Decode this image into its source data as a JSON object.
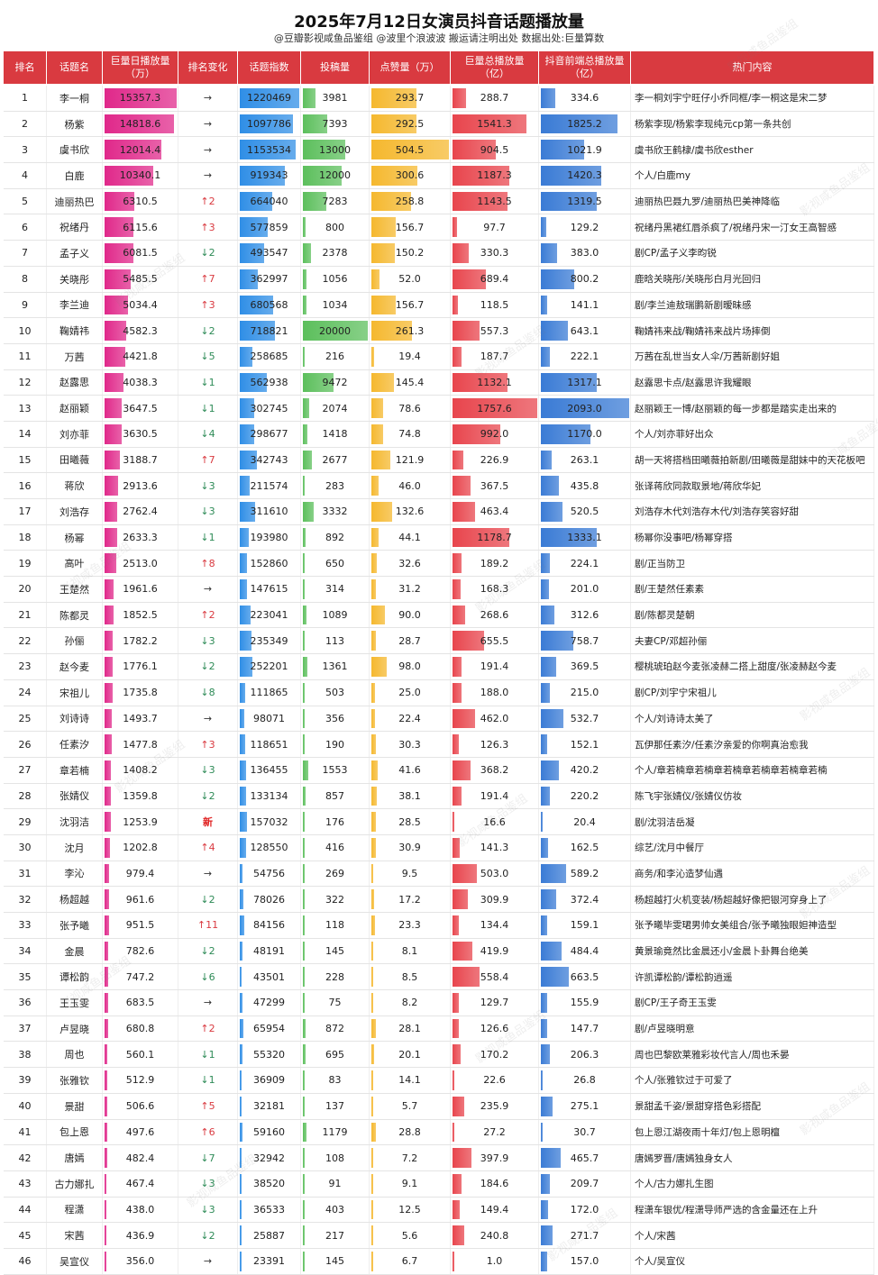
{
  "title": "2025年7月12日女演员抖音话题播放量",
  "subtitle": "@豆瓣影视咸鱼品鉴组 @波里个浪波波 搬运请注明出处 数据出处:巨量算数",
  "watermark": "影视咸鱼品鉴组",
  "colors": {
    "header": "#d93a40",
    "bar_daily": "#e0288a",
    "bar_index": "#2f8ee6",
    "bar_posts": "#5cbf5c",
    "bar_likes": "#f5b82e",
    "bar_total": "#e8454d",
    "bar_frontend": "#3a7bd5"
  },
  "headers": {
    "rank": "排名",
    "name": "话题名",
    "daily": "巨量日播放量\n（万）",
    "change": "排名变化",
    "index": "话题指数",
    "posts": "投稿量",
    "likes": "点赞量（万）",
    "total": "巨量总播放量\n（亿）",
    "frontend": "抖音前端总播放量\n（亿）",
    "hot": "热门内容"
  },
  "rows": [
    {
      "rank": "1",
      "name": "李一桐",
      "daily": "15357.3",
      "change": "→",
      "index": "1220469",
      "posts": "3981",
      "likes": "293.7",
      "total": "288.7",
      "frontend": "334.6",
      "hot": "李一桐刘宇宁旺仔小乔同框/李一桐这是宋二梦"
    },
    {
      "rank": "2",
      "name": "杨紫",
      "daily": "14818.6",
      "change": "→",
      "index": "1097786",
      "posts": "7393",
      "likes": "292.5",
      "total": "1541.3",
      "frontend": "1825.2",
      "hot": "杨紫李现/杨紫李现纯元cp第一条共创"
    },
    {
      "rank": "3",
      "name": "虞书欣",
      "daily": "12014.4",
      "change": "→",
      "index": "1153534",
      "posts": "13000",
      "likes": "504.5",
      "total": "904.5",
      "frontend": "1021.9",
      "hot": "虞书欣王鹤棣/虞书欣esther"
    },
    {
      "rank": "4",
      "name": "白鹿",
      "daily": "10340.1",
      "change": "→",
      "index": "919343",
      "posts": "12000",
      "likes": "300.6",
      "total": "1187.3",
      "frontend": "1420.3",
      "hot": "个人/白鹿my"
    },
    {
      "rank": "5",
      "name": "迪丽热巴",
      "daily": "6310.5",
      "change": "↑2",
      "index": "664040",
      "posts": "7283",
      "likes": "258.8",
      "total": "1143.5",
      "frontend": "1319.5",
      "hot": "迪丽热巴聂九罗/迪丽热巴美神降临"
    },
    {
      "rank": "6",
      "name": "祝绪丹",
      "daily": "6115.6",
      "change": "↑3",
      "index": "577859",
      "posts": "800",
      "likes": "156.7",
      "total": "97.7",
      "frontend": "129.2",
      "hot": "祝绪丹黑裙红唇杀疯了/祝绪丹宋一汀女王高智感"
    },
    {
      "rank": "7",
      "name": "孟子义",
      "daily": "6081.5",
      "change": "↓2",
      "index": "493547",
      "posts": "2378",
      "likes": "150.2",
      "total": "330.3",
      "frontend": "383.0",
      "hot": "剧CP/孟子义李昀锐"
    },
    {
      "rank": "8",
      "name": "关晓彤",
      "daily": "5485.5",
      "change": "↑7",
      "index": "362997",
      "posts": "1056",
      "likes": "52.0",
      "total": "689.4",
      "frontend": "800.2",
      "hot": "鹿晗关晓彤/关晓彤白月光回归"
    },
    {
      "rank": "9",
      "name": "李兰迪",
      "daily": "5034.4",
      "change": "↑3",
      "index": "680568",
      "posts": "1034",
      "likes": "156.7",
      "total": "118.5",
      "frontend": "141.1",
      "hot": "剧/李兰迪敖瑞鹏新剧暧昧感"
    },
    {
      "rank": "10",
      "name": "鞠婧祎",
      "daily": "4582.3",
      "change": "↓2",
      "index": "718821",
      "posts": "20000",
      "likes": "261.3",
      "total": "557.3",
      "frontend": "643.1",
      "hot": "鞠婧祎来战/鞠婧祎来战片场摔倒"
    },
    {
      "rank": "11",
      "name": "万茜",
      "daily": "4421.8",
      "change": "↓5",
      "index": "258685",
      "posts": "216",
      "likes": "19.4",
      "total": "187.7",
      "frontend": "222.1",
      "hot": "万茜在乱世当女人伞/万茜新剧好姐"
    },
    {
      "rank": "12",
      "name": "赵露思",
      "daily": "4038.3",
      "change": "↓1",
      "index": "562938",
      "posts": "9472",
      "likes": "145.4",
      "total": "1132.1",
      "frontend": "1317.1",
      "hot": "赵露思卡点/赵露思许我耀眼"
    },
    {
      "rank": "13",
      "name": "赵丽颖",
      "daily": "3647.5",
      "change": "↓1",
      "index": "302745",
      "posts": "2074",
      "likes": "78.6",
      "total": "1757.6",
      "frontend": "2093.0",
      "hot": "赵丽颖王一博/赵丽颖的每一步都是踏实走出来的"
    },
    {
      "rank": "14",
      "name": "刘亦菲",
      "daily": "3630.5",
      "change": "↓4",
      "index": "298677",
      "posts": "1418",
      "likes": "74.8",
      "total": "992.0",
      "frontend": "1170.0",
      "hot": "个人/刘亦菲好出众"
    },
    {
      "rank": "15",
      "name": "田曦薇",
      "daily": "3188.7",
      "change": "↑7",
      "index": "342743",
      "posts": "2677",
      "likes": "121.9",
      "total": "226.9",
      "frontend": "263.1",
      "hot": "胡一天将搭档田曦薇拍新剧/田曦薇是甜妹中的天花板吧"
    },
    {
      "rank": "16",
      "name": "蒋欣",
      "daily": "2913.6",
      "change": "↓3",
      "index": "211574",
      "posts": "283",
      "likes": "46.0",
      "total": "367.5",
      "frontend": "435.8",
      "hot": "张译蒋欣同款取景地/蒋欣华妃"
    },
    {
      "rank": "17",
      "name": "刘浩存",
      "daily": "2762.4",
      "change": "↓3",
      "index": "311610",
      "posts": "3332",
      "likes": "132.6",
      "total": "463.4",
      "frontend": "520.5",
      "hot": "刘浩存木代刘浩存木代/刘浩存笑容好甜"
    },
    {
      "rank": "18",
      "name": "杨幂",
      "daily": "2633.3",
      "change": "↓1",
      "index": "193980",
      "posts": "892",
      "likes": "44.1",
      "total": "1178.7",
      "frontend": "1333.1",
      "hot": "杨幂你没事吧/杨幂穿搭"
    },
    {
      "rank": "19",
      "name": "高叶",
      "daily": "2513.0",
      "change": "↑8",
      "index": "152860",
      "posts": "650",
      "likes": "32.6",
      "total": "189.2",
      "frontend": "224.1",
      "hot": "剧/正当防卫"
    },
    {
      "rank": "20",
      "name": "王楚然",
      "daily": "1961.6",
      "change": "→",
      "index": "147615",
      "posts": "314",
      "likes": "31.2",
      "total": "168.3",
      "frontend": "201.0",
      "hot": "剧/王楚然任素素"
    },
    {
      "rank": "21",
      "name": "陈都灵",
      "daily": "1852.5",
      "change": "↑2",
      "index": "223041",
      "posts": "1089",
      "likes": "90.0",
      "total": "268.6",
      "frontend": "312.6",
      "hot": "剧/陈都灵楚朝"
    },
    {
      "rank": "22",
      "name": "孙俪",
      "daily": "1782.2",
      "change": "↓3",
      "index": "235349",
      "posts": "113",
      "likes": "28.7",
      "total": "655.5",
      "frontend": "758.7",
      "hot": "夫妻CP/邓超孙俪"
    },
    {
      "rank": "23",
      "name": "赵今麦",
      "daily": "1776.1",
      "change": "↓2",
      "index": "252201",
      "posts": "1361",
      "likes": "98.0",
      "total": "191.4",
      "frontend": "369.5",
      "hot": "樱桃琥珀赵今麦张凌赫二搭上甜度/张凌赫赵今麦"
    },
    {
      "rank": "24",
      "name": "宋祖儿",
      "daily": "1735.8",
      "change": "↓8",
      "index": "111865",
      "posts": "503",
      "likes": "25.0",
      "total": "188.0",
      "frontend": "215.0",
      "hot": "剧CP/刘宇宁宋祖儿"
    },
    {
      "rank": "25",
      "name": "刘诗诗",
      "daily": "1493.7",
      "change": "→",
      "index": "98071",
      "posts": "356",
      "likes": "22.4",
      "total": "462.0",
      "frontend": "532.7",
      "hot": "个人/刘诗诗太美了"
    },
    {
      "rank": "26",
      "name": "任素汐",
      "daily": "1477.8",
      "change": "↑3",
      "index": "118651",
      "posts": "190",
      "likes": "30.3",
      "total": "126.3",
      "frontend": "152.1",
      "hot": "瓦伊那任素汐/任素汐亲爱的你啊真治愈我"
    },
    {
      "rank": "27",
      "name": "章若楠",
      "daily": "1408.2",
      "change": "↓3",
      "index": "136455",
      "posts": "1553",
      "likes": "41.6",
      "total": "368.2",
      "frontend": "420.2",
      "hot": "个人/章若楠章若楠章若楠章若楠章若楠章若楠"
    },
    {
      "rank": "28",
      "name": "张婧仪",
      "daily": "1359.8",
      "change": "↓2",
      "index": "133134",
      "posts": "857",
      "likes": "38.1",
      "total": "191.4",
      "frontend": "220.2",
      "hot": "陈飞宇张婧仪/张婧仪仿妆"
    },
    {
      "rank": "29",
      "name": "沈羽洁",
      "daily": "1253.9",
      "change": "新",
      "index": "157032",
      "posts": "176",
      "likes": "28.5",
      "total": "16.6",
      "frontend": "20.4",
      "hot": "剧/沈羽洁岳凝"
    },
    {
      "rank": "30",
      "name": "沈月",
      "daily": "1202.8",
      "change": "↑4",
      "index": "128550",
      "posts": "416",
      "likes": "30.9",
      "total": "141.3",
      "frontend": "162.5",
      "hot": "综艺/沈月中餐厅"
    },
    {
      "rank": "31",
      "name": "李沁",
      "daily": "979.4",
      "change": "→",
      "index": "54756",
      "posts": "269",
      "likes": "9.5",
      "total": "503.0",
      "frontend": "589.2",
      "hot": "商务/和李沁造梦仙遇"
    },
    {
      "rank": "32",
      "name": "杨超越",
      "daily": "961.6",
      "change": "↓2",
      "index": "78026",
      "posts": "322",
      "likes": "17.2",
      "total": "309.9",
      "frontend": "372.4",
      "hot": "杨超越打火机变装/杨超越好像把银河穿身上了"
    },
    {
      "rank": "33",
      "name": "张予曦",
      "daily": "951.5",
      "change": "↑11",
      "index": "84156",
      "posts": "118",
      "likes": "23.3",
      "total": "134.4",
      "frontend": "159.1",
      "hot": "张予曦毕雯珺男帅女美组合/张予曦独眼妲神造型"
    },
    {
      "rank": "34",
      "name": "金晨",
      "daily": "782.6",
      "change": "↓2",
      "index": "48191",
      "posts": "145",
      "likes": "8.1",
      "total": "419.9",
      "frontend": "484.4",
      "hot": "黄景瑜竟然比金晨还小/金晨卜卦舞台绝美"
    },
    {
      "rank": "35",
      "name": "谭松韵",
      "daily": "747.2",
      "change": "↓6",
      "index": "43501",
      "posts": "228",
      "likes": "8.5",
      "total": "558.4",
      "frontend": "663.5",
      "hot": "许凯谭松韵/谭松韵逍遥"
    },
    {
      "rank": "36",
      "name": "王玉雯",
      "daily": "683.5",
      "change": "→",
      "index": "47299",
      "posts": "75",
      "likes": "8.2",
      "total": "129.7",
      "frontend": "155.9",
      "hot": "剧CP/王子奇王玉雯"
    },
    {
      "rank": "37",
      "name": "卢昱晓",
      "daily": "680.8",
      "change": "↑2",
      "index": "65954",
      "posts": "872",
      "likes": "28.1",
      "total": "126.6",
      "frontend": "147.7",
      "hot": "剧/卢昱晓明意"
    },
    {
      "rank": "38",
      "name": "周也",
      "daily": "560.1",
      "change": "↓1",
      "index": "55320",
      "posts": "695",
      "likes": "20.1",
      "total": "170.2",
      "frontend": "206.3",
      "hot": "周也巴黎欧莱雅彩妆代言人/周也禾晏"
    },
    {
      "rank": "39",
      "name": "张雅钦",
      "daily": "512.9",
      "change": "↓1",
      "index": "36909",
      "posts": "83",
      "likes": "14.1",
      "total": "22.6",
      "frontend": "26.8",
      "hot": "个人/张雅钦过于可爱了"
    },
    {
      "rank": "40",
      "name": "景甜",
      "daily": "506.6",
      "change": "↑5",
      "index": "32181",
      "posts": "137",
      "likes": "5.7",
      "total": "235.9",
      "frontend": "275.1",
      "hot": "景甜孟千姿/景甜穿搭色彩搭配"
    },
    {
      "rank": "41",
      "name": "包上恩",
      "daily": "497.6",
      "change": "↑6",
      "index": "59160",
      "posts": "1179",
      "likes": "28.8",
      "total": "27.2",
      "frontend": "30.7",
      "hot": "包上恩江湖夜雨十年灯/包上恩明檀"
    },
    {
      "rank": "42",
      "name": "唐嫣",
      "daily": "482.4",
      "change": "↓7",
      "index": "32942",
      "posts": "108",
      "likes": "7.2",
      "total": "397.9",
      "frontend": "465.7",
      "hot": "唐嫣罗晋/唐嫣独身女人"
    },
    {
      "rank": "43",
      "name": "古力娜扎",
      "daily": "467.4",
      "change": "↓3",
      "index": "38520",
      "posts": "91",
      "likes": "9.1",
      "total": "184.6",
      "frontend": "209.7",
      "hot": "个人/古力娜扎生图"
    },
    {
      "rank": "44",
      "name": "程潇",
      "daily": "438.0",
      "change": "↓3",
      "index": "36533",
      "posts": "403",
      "likes": "12.5",
      "total": "149.4",
      "frontend": "172.0",
      "hot": "程潇车银优/程潇导师严选的含金量还在上升"
    },
    {
      "rank": "45",
      "name": "宋茜",
      "daily": "436.9",
      "change": "↓2",
      "index": "25887",
      "posts": "217",
      "likes": "5.6",
      "total": "240.8",
      "frontend": "271.7",
      "hot": "个人/宋茜"
    },
    {
      "rank": "46",
      "name": "吴宣仪",
      "daily": "356.0",
      "change": "→",
      "index": "23391",
      "posts": "145",
      "likes": "6.7",
      "total": "1.0",
      "frontend": "157.0",
      "hot": "个人/吴宣仪"
    }
  ]
}
